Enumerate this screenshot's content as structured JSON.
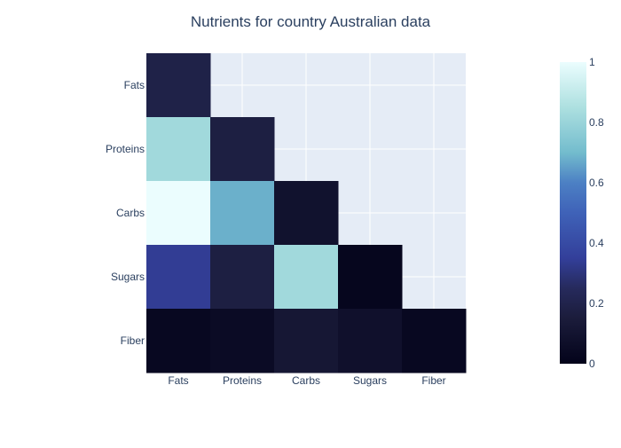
{
  "chart_data": {
    "type": "heatmap",
    "title": "Nutrients for country Australian data",
    "x_categories": [
      "Fats",
      "Proteins",
      "Carbs",
      "Sugars",
      "Fiber"
    ],
    "y_categories": [
      "Fats",
      "Proteins",
      "Carbs",
      "Sugars",
      "Fiber"
    ],
    "z": [
      [
        0.19,
        null,
        null,
        null,
        null
      ],
      [
        0.82,
        0.17,
        null,
        null,
        null
      ],
      [
        1.0,
        0.68,
        0.09,
        null,
        null
      ],
      [
        0.34,
        0.17,
        0.82,
        0.02,
        null
      ],
      [
        0.03,
        0.05,
        0.12,
        0.08,
        0.03
      ]
    ],
    "colorscale": [
      [
        0.0,
        "#03031a"
      ],
      [
        0.15,
        "#1b1c3b"
      ],
      [
        0.25,
        "#262a5c"
      ],
      [
        0.35,
        "#333f9a"
      ],
      [
        0.5,
        "#3f62b8"
      ],
      [
        0.6,
        "#4c80c4"
      ],
      [
        0.7,
        "#73bccd"
      ],
      [
        0.85,
        "#ade0e0"
      ],
      [
        1.0,
        "#ebfdfe"
      ]
    ],
    "zrange": [
      0,
      1
    ],
    "colorbar_ticks": [
      "0",
      "0.2",
      "0.4",
      "0.6",
      "0.8",
      "1"
    ],
    "colorbar_tick_values": [
      0,
      0.2,
      0.4,
      0.6,
      0.8,
      1.0
    ],
    "plot_bgcolor": "#e5ecf6",
    "grid": true,
    "text_color": "#2a3f5f"
  }
}
